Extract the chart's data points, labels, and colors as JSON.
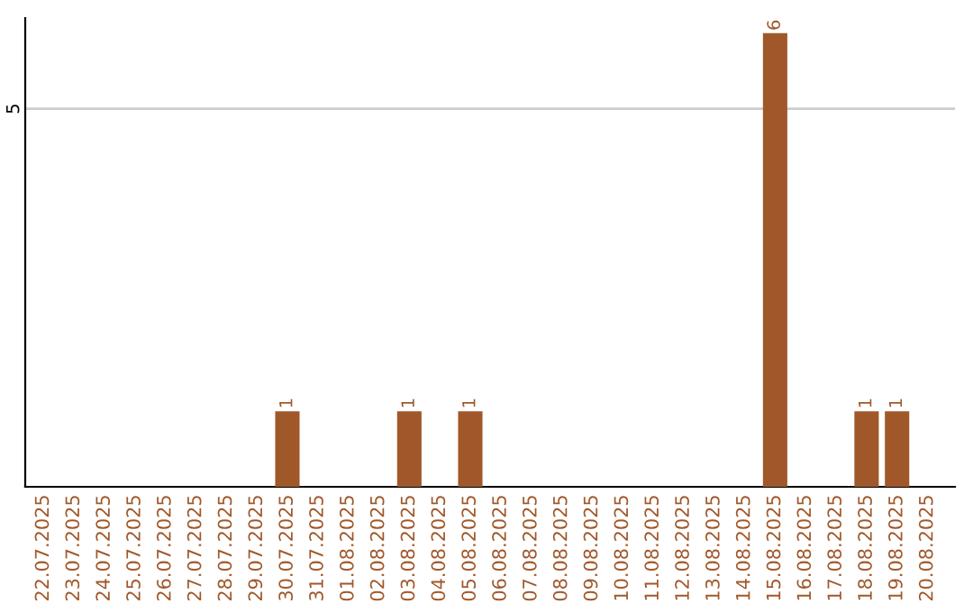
{
  "chart_data": {
    "type": "bar",
    "categories": [
      "22.07.2025",
      "23.07.2025",
      "24.07.2025",
      "25.07.2025",
      "26.07.2025",
      "27.07.2025",
      "28.07.2025",
      "29.07.2025",
      "30.07.2025",
      "31.07.2025",
      "01.08.2025",
      "02.08.2025",
      "03.08.2025",
      "04.08.2025",
      "05.08.2025",
      "06.08.2025",
      "07.08.2025",
      "08.08.2025",
      "09.08.2025",
      "10.08.2025",
      "11.08.2025",
      "12.08.2025",
      "13.08.2025",
      "14.08.2025",
      "15.08.2025",
      "16.08.2025",
      "17.08.2025",
      "18.08.2025",
      "19.08.2025",
      "20.08.2025"
    ],
    "values": [
      0,
      0,
      0,
      0,
      0,
      0,
      0,
      0,
      1,
      0,
      0,
      0,
      1,
      0,
      1,
      0,
      0,
      0,
      0,
      0,
      0,
      0,
      0,
      0,
      6,
      0,
      0,
      1,
      1,
      0
    ],
    "value_labels": [
      null,
      null,
      null,
      null,
      null,
      null,
      null,
      null,
      "1",
      null,
      null,
      null,
      "1",
      null,
      "1",
      null,
      null,
      null,
      null,
      null,
      null,
      null,
      null,
      null,
      "6",
      null,
      null,
      "1",
      "1",
      null
    ],
    "color": "#a0582a",
    "ylim": [
      0,
      6.2
    ],
    "yticks": [
      5
    ],
    "grid": "y"
  }
}
